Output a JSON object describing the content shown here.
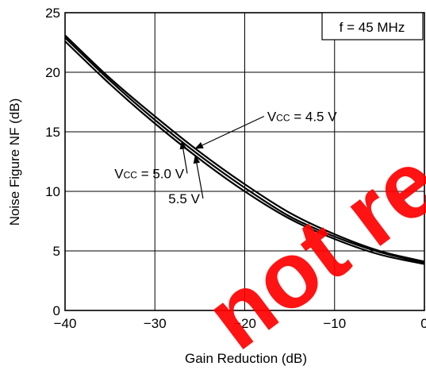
{
  "chart_data": {
    "type": "line",
    "title": "",
    "xlabel": "Gain Reduction (dB)",
    "ylabel": "Noise Figure  NF (dB)",
    "xlim": [
      -40,
      0
    ],
    "ylim": [
      0,
      25
    ],
    "grid": true,
    "x_ticks": [
      -40,
      -30,
      -20,
      -10,
      0
    ],
    "x_tick_labels": [
      "−40",
      "−30",
      "−20",
      "−10",
      "0"
    ],
    "y_ticks": [
      0,
      5,
      10,
      15,
      20,
      25
    ],
    "y_tick_labels": [
      "0",
      "5",
      "10",
      "15",
      "20",
      "25"
    ],
    "condition_label": "f = 45 MHz",
    "series": [
      {
        "name": "VCC = 4.5 V",
        "x": [
          -40,
          -35,
          -30,
          -25,
          -20,
          -15,
          -10,
          -5,
          0
        ],
        "y": [
          23.1,
          19.5,
          16.3,
          13.3,
          10.6,
          8.2,
          6.4,
          5.0,
          4.1
        ]
      },
      {
        "name": "VCC = 5.0 V",
        "x": [
          -40,
          -35,
          -30,
          -25,
          -20,
          -15,
          -10,
          -5,
          0
        ],
        "y": [
          22.9,
          19.3,
          16.0,
          13.0,
          10.3,
          7.9,
          6.2,
          4.9,
          4.0
        ]
      },
      {
        "name": "VCC = 5.5 V",
        "x": [
          -40,
          -35,
          -30,
          -25,
          -20,
          -15,
          -10,
          -5,
          0
        ],
        "y": [
          22.6,
          19.0,
          15.7,
          12.7,
          10.0,
          7.7,
          6.0,
          4.7,
          3.9
        ]
      }
    ],
    "annotations": [
      {
        "label_main": "V",
        "label_sub": "CC",
        "label_rest": " = 4.5 V",
        "target_series": 0,
        "target_x": -25.5,
        "text_x": -17.5,
        "text_y": 15.9
      },
      {
        "label_main": "V",
        "label_sub": "CC",
        "label_rest": " = 5.0 V",
        "target_series": 1,
        "target_x": -27.0,
        "text_x": -34.5,
        "text_y": 11.1
      },
      {
        "label_main": "",
        "label_sub": "",
        "label_rest": "5.5 V",
        "target_series": 2,
        "target_x": -25.5,
        "text_x": -28.5,
        "text_y": 9.0
      }
    ],
    "watermark": "not recommended"
  }
}
